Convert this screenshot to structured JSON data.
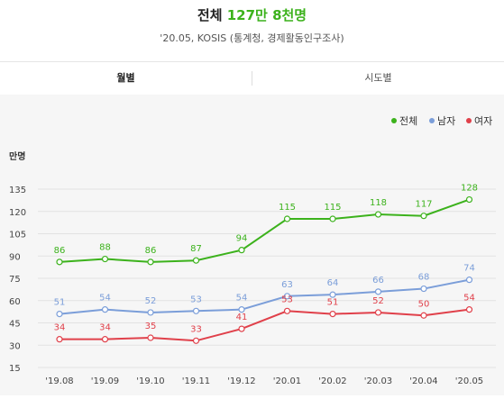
{
  "header": {
    "title_prefix": "전체",
    "title_value": "127만 8천명",
    "subtitle": "'20.05, KOSIS (통계청, 경제활동인구조사)"
  },
  "tabs": [
    {
      "label": "월별",
      "active": true
    },
    {
      "label": "시도별",
      "active": false
    }
  ],
  "colors": {
    "total": "#3cb21c",
    "male": "#7b9ed9",
    "female": "#e0404a"
  },
  "chart_data": {
    "type": "line",
    "ylabel": "만명",
    "ylim": [
      15,
      135
    ],
    "yticks": [
      15,
      30,
      45,
      60,
      75,
      90,
      105,
      120,
      135
    ],
    "categories": [
      "'19.08",
      "'19.09",
      "'19.10",
      "'19.11",
      "'19.12",
      "'20.01",
      "'20.02",
      "'20.03",
      "'20.04",
      "'20.05"
    ],
    "legend_position": "top-right",
    "series": [
      {
        "key": "total",
        "name": "전체",
        "values": [
          86,
          88,
          86,
          87,
          94,
          115,
          115,
          118,
          117,
          128
        ]
      },
      {
        "key": "male",
        "name": "남자",
        "values": [
          51,
          54,
          52,
          53,
          54,
          63,
          64,
          66,
          68,
          74
        ]
      },
      {
        "key": "female",
        "name": "여자",
        "values": [
          34,
          34,
          35,
          33,
          41,
          53,
          51,
          52,
          50,
          54
        ]
      }
    ]
  }
}
